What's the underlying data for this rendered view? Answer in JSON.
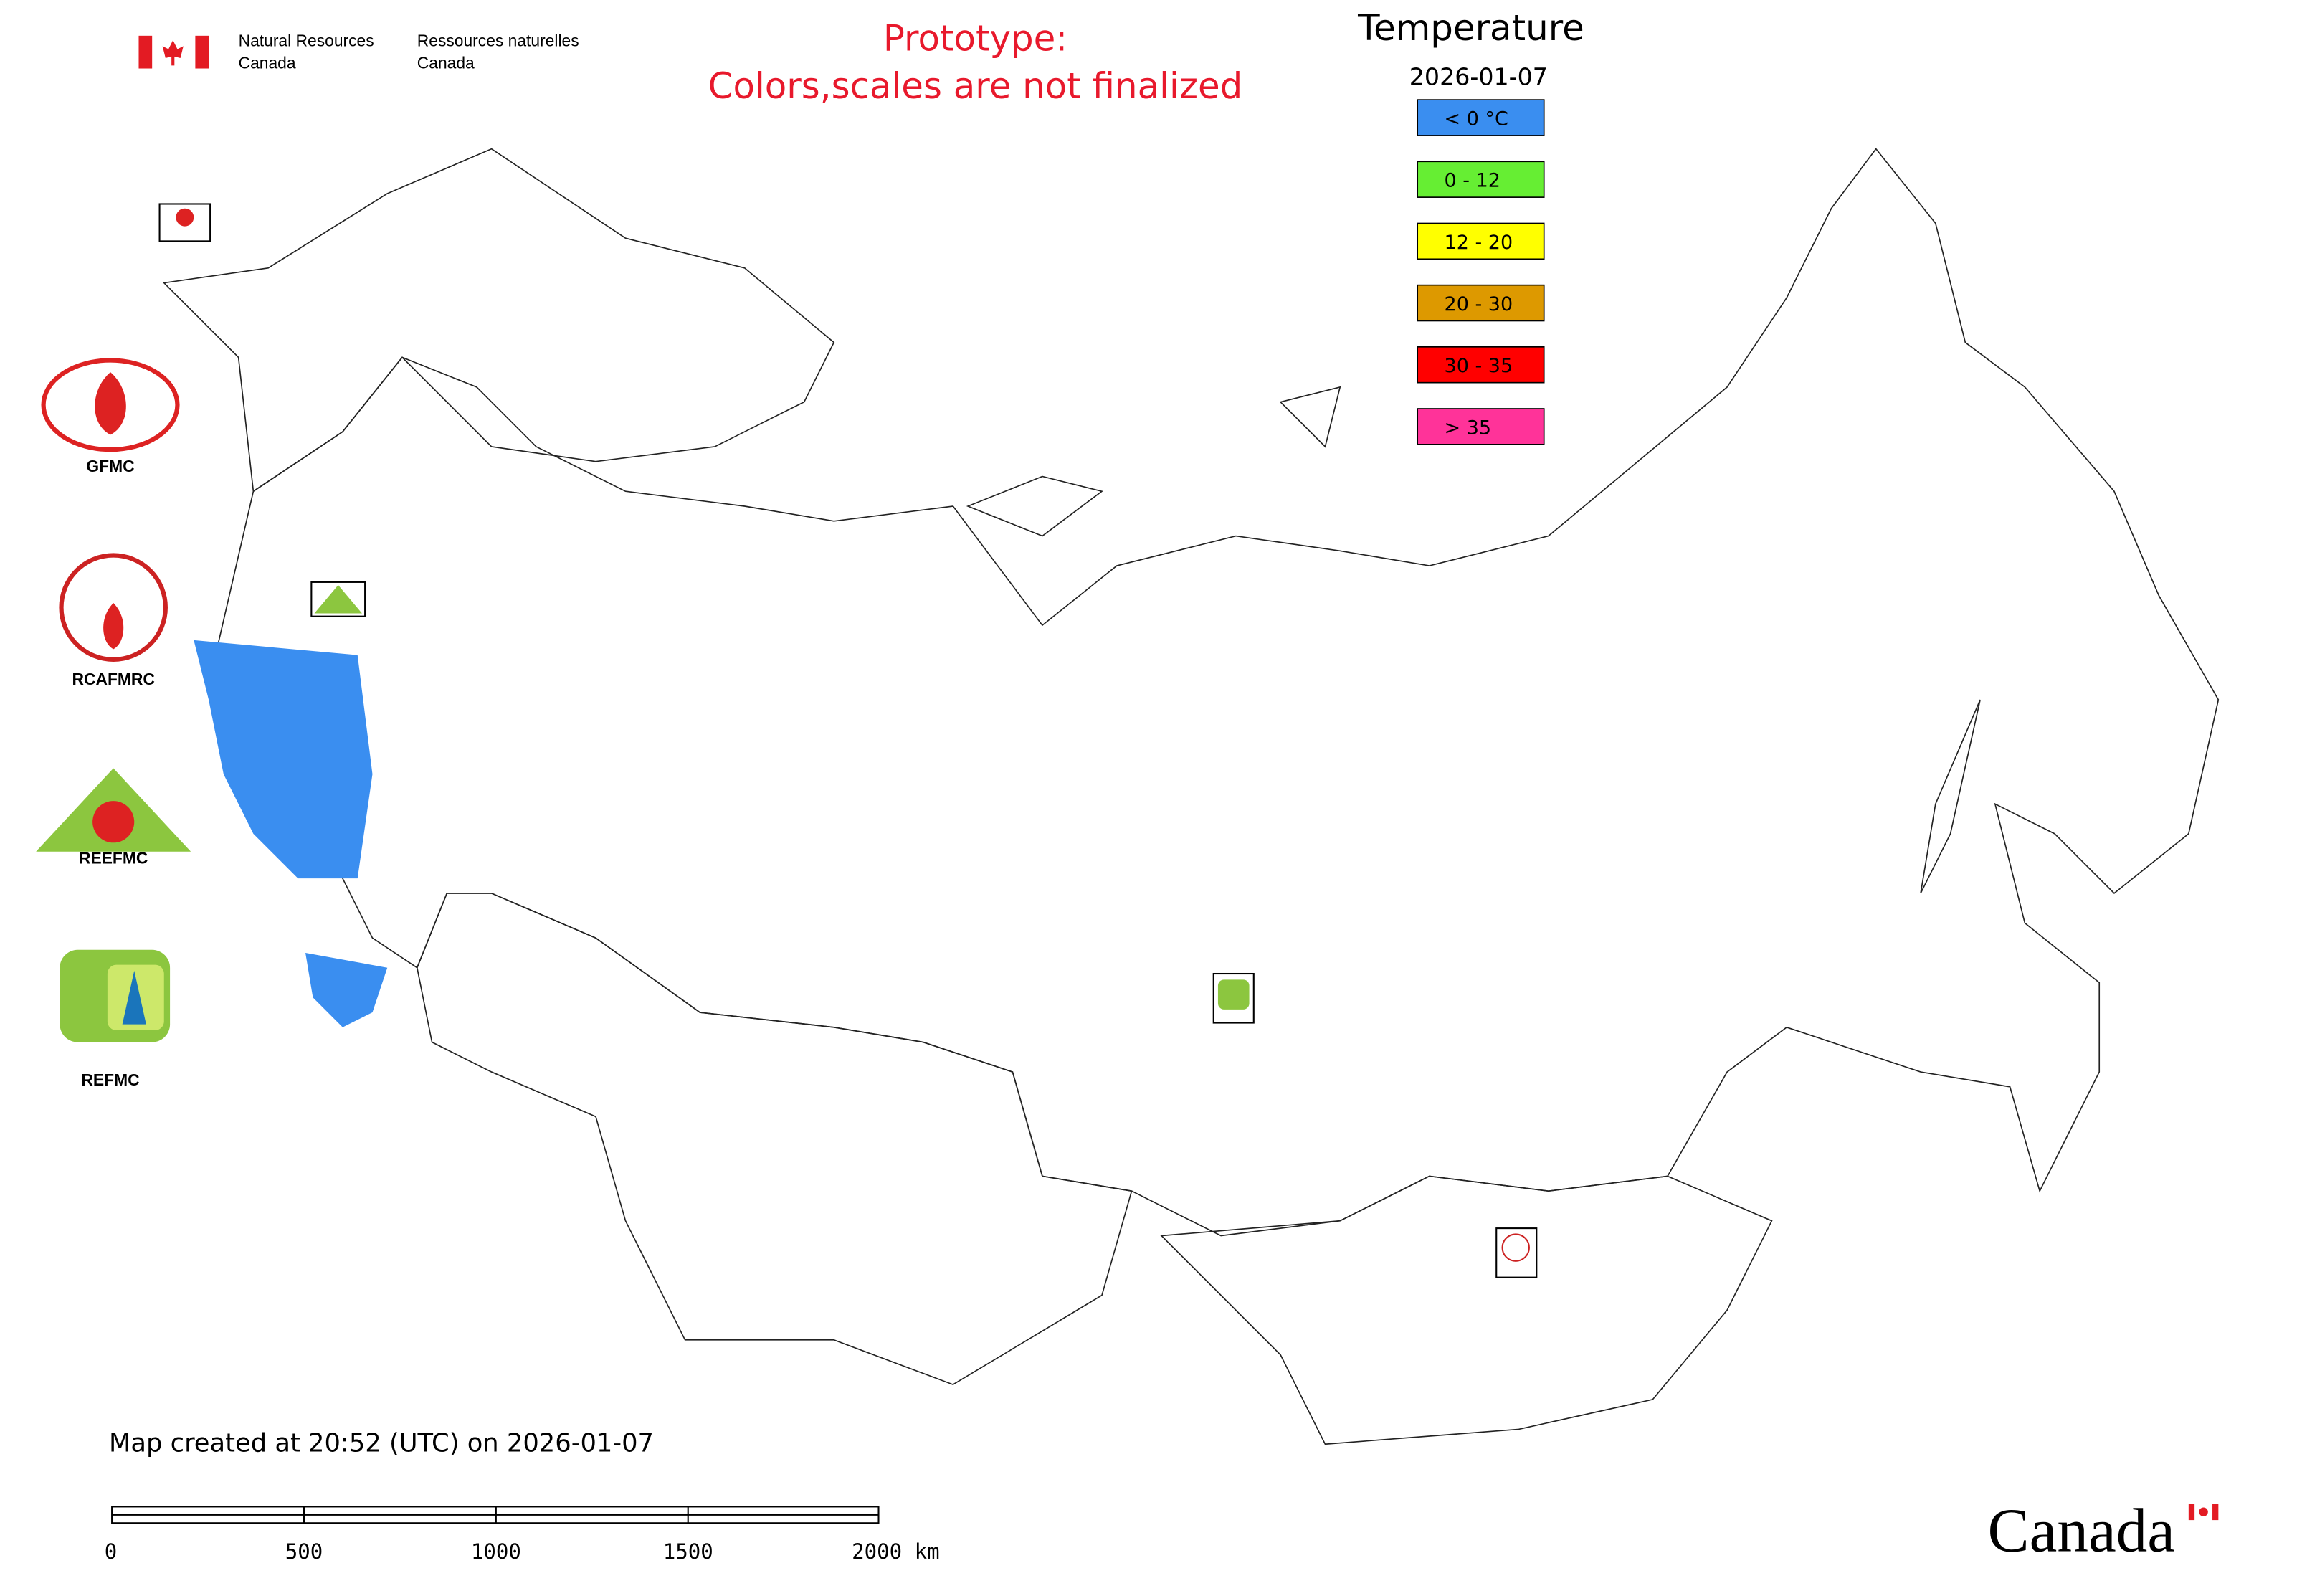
{
  "header": {
    "agency_en": [
      "Natural Resources",
      "Canada"
    ],
    "agency_fr": [
      "Ressources naturelles",
      "Canada"
    ],
    "notice": [
      "Prototype:",
      "Colors,scales are not finalized"
    ]
  },
  "legend": {
    "title": "Temperature",
    "date": "2026-01-07",
    "items": [
      {
        "label": "< 0 °C",
        "color": "#3a8ef0"
      },
      {
        "label": "0 - 12",
        "color": "#66ee33"
      },
      {
        "label": "12 - 20",
        "color": "#ffff00"
      },
      {
        "label": "20 - 30",
        "color": "#dd9900"
      },
      {
        "label": "30 - 35",
        "color": "#ff0000"
      },
      {
        "label": "> 35",
        "color": "#ff3399"
      }
    ]
  },
  "logos": [
    "GFMC",
    "RCAFMRC",
    "REEFMC",
    "REFMC"
  ],
  "footer": {
    "created": "Map created at 20:52 (UTC) on 2026-01-07",
    "scale_labels": [
      "0",
      "500",
      "1000",
      "1500",
      "2000 km"
    ],
    "wordmark": "Canada"
  }
}
